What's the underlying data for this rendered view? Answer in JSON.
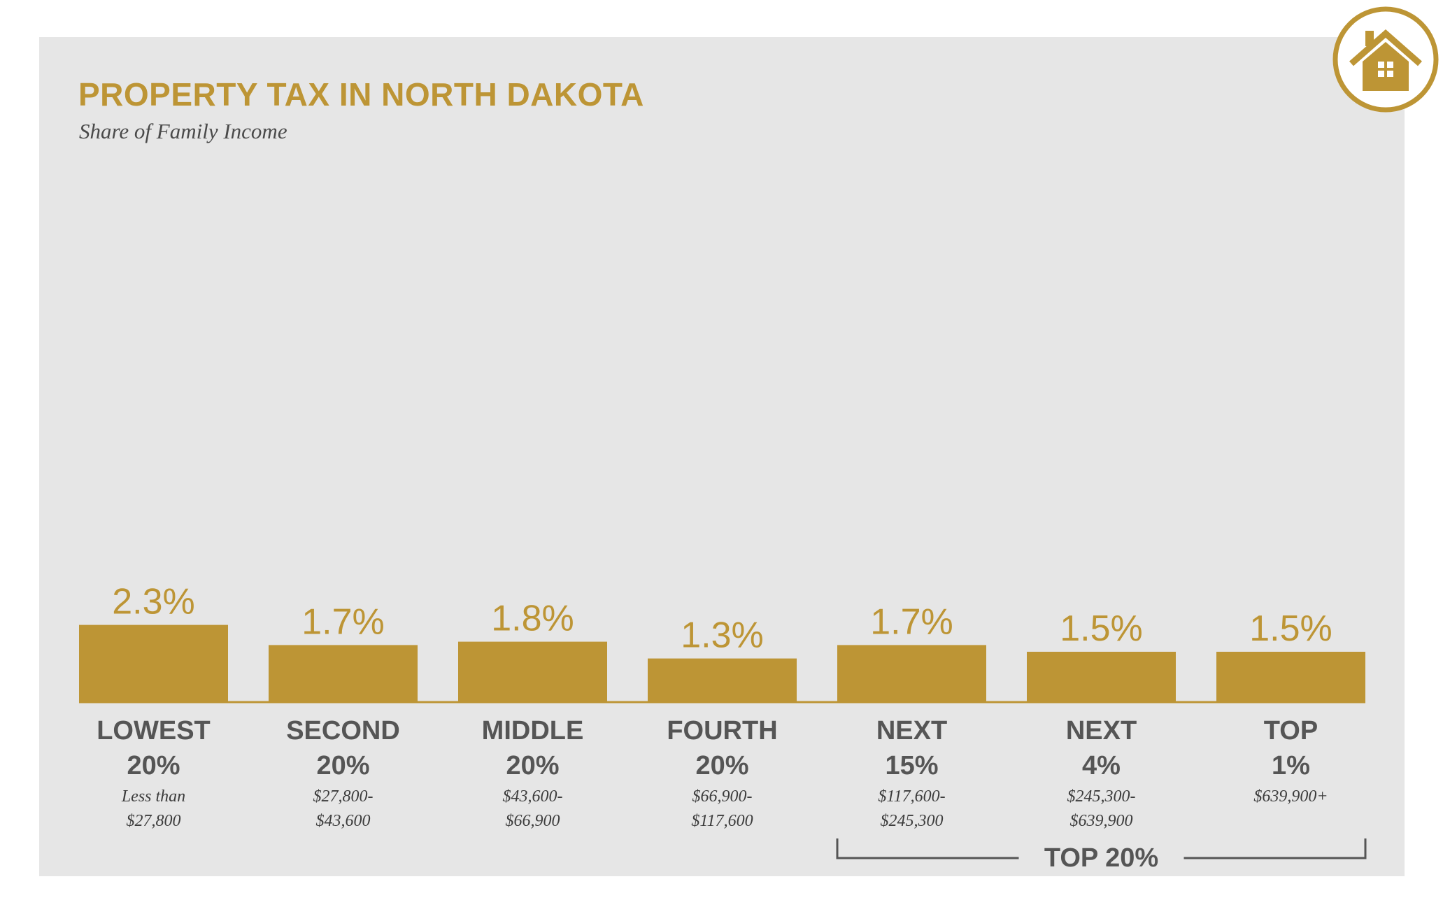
{
  "header": {
    "title": "PROPERTY TAX IN NORTH DAKOTA",
    "subtitle": "Share of Family Income"
  },
  "icon": {
    "name": "house-icon"
  },
  "colors": {
    "bar": "#bd9535",
    "panel": "#e6e6e6",
    "text": "#555555"
  },
  "chart_data": {
    "type": "bar",
    "title": "PROPERTY TAX IN NORTH DAKOTA",
    "subtitle": "Share of Family Income",
    "categories": [
      {
        "line1": "LOWEST",
        "line2": "20%",
        "range1": "Less than",
        "range2": "$27,800"
      },
      {
        "line1": "SECOND",
        "line2": "20%",
        "range1": "$27,800-",
        "range2": "$43,600"
      },
      {
        "line1": "MIDDLE",
        "line2": "20%",
        "range1": "$43,600-",
        "range2": "$66,900"
      },
      {
        "line1": "FOURTH",
        "line2": "20%",
        "range1": "$66,900-",
        "range2": "$117,600"
      },
      {
        "line1": "NEXT",
        "line2": "15%",
        "range1": "$117,600-",
        "range2": "$245,300"
      },
      {
        "line1": "NEXT",
        "line2": "4%",
        "range1": "$245,300-",
        "range2": "$639,900"
      },
      {
        "line1": "TOP",
        "line2": "1%",
        "range1": "$639,900+",
        "range2": ""
      }
    ],
    "values": [
      2.3,
      1.7,
      1.8,
      1.3,
      1.7,
      1.5,
      1.5
    ],
    "value_labels": [
      "2.3%",
      "1.7%",
      "1.8%",
      "1.3%",
      "1.7%",
      "1.5%",
      "1.5%"
    ],
    "group_label": "TOP 20%",
    "group_span": [
      4,
      6
    ],
    "grid": false,
    "legend": "none"
  }
}
